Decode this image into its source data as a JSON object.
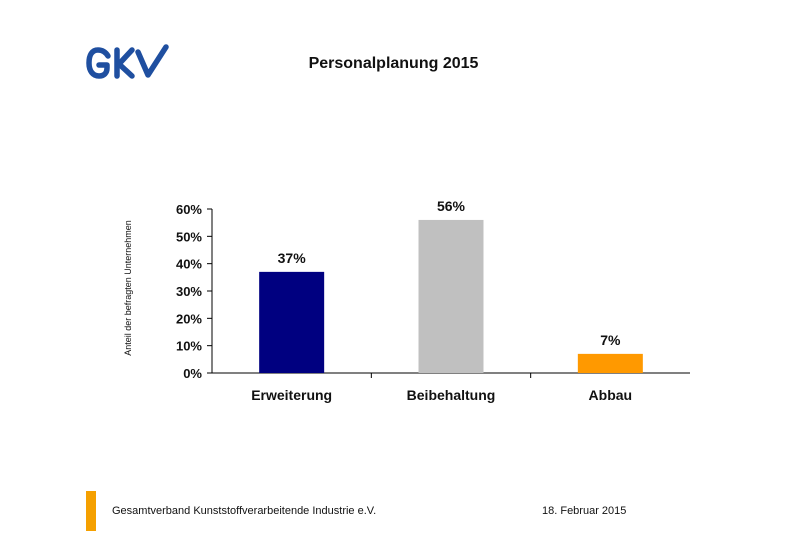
{
  "brand": {
    "logo_text": "GKV",
    "logo_color": "#1f4fa0"
  },
  "title": "Personalplanung 2015",
  "footer": {
    "organization": "Gesamtverband Kunststoffverarbeitende Industrie e.V.",
    "date": "18. Februar 2015",
    "accent_color": "#f5a000"
  },
  "chart_data": {
    "type": "bar",
    "categories": [
      "Erweiterung",
      "Beibehaltung",
      "Abbau"
    ],
    "values": [
      37,
      56,
      7
    ],
    "value_labels": [
      "37%",
      "56%",
      "7%"
    ],
    "colors": [
      "#000080",
      "#c0c0c0",
      "#ff9900"
    ],
    "ylabel": "Anteil der befragten Unternehmen",
    "ylim": [
      0,
      60
    ],
    "yticks": [
      0,
      10,
      20,
      30,
      40,
      50,
      60
    ],
    "ytick_labels": [
      "0%",
      "10%",
      "20%",
      "30%",
      "40%",
      "50%",
      "60%"
    ],
    "grid": false,
    "legend": "none"
  }
}
